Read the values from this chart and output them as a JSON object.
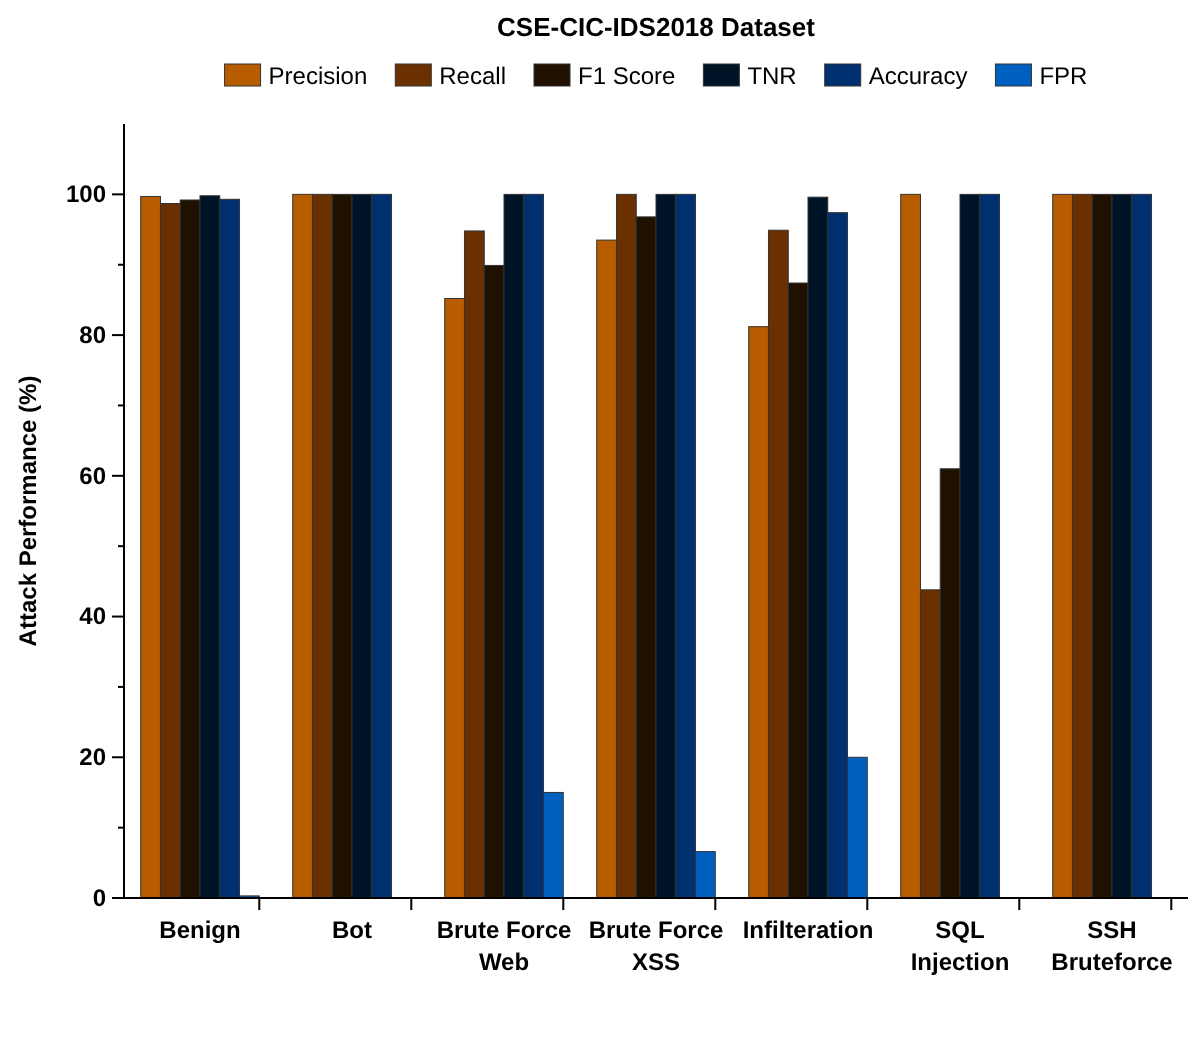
{
  "chart_data": {
    "type": "bar",
    "title": "CSE-CIC-IDS2018 Dataset",
    "ylabel": "Attack Performance (%)",
    "categories": [
      "Benign",
      "Bot",
      "Brute Force Web",
      "Brute Force XSS",
      "Infilteration",
      "SQL Injection",
      "SSH Bruteforce"
    ],
    "series": [
      {
        "name": "Precision",
        "color": "#b85c00",
        "values": [
          99.7,
          100,
          85.2,
          93.5,
          81.2,
          100,
          100
        ]
      },
      {
        "name": "Recall",
        "color": "#6b3000",
        "values": [
          98.7,
          100,
          94.8,
          100,
          94.9,
          43.8,
          100
        ]
      },
      {
        "name": "F1 Score",
        "color": "#201000",
        "values": [
          99.2,
          100,
          89.9,
          96.8,
          87.4,
          61,
          100
        ]
      },
      {
        "name": "TNR",
        "color": "#001428",
        "values": [
          99.8,
          100,
          100,
          100,
          99.6,
          100,
          100
        ]
      },
      {
        "name": "Accuracy",
        "color": "#003070",
        "values": [
          99.3,
          100,
          100,
          100,
          97.4,
          100,
          100
        ]
      },
      {
        "name": "FPR",
        "color": "#0060c0",
        "values": [
          0.3,
          0,
          15,
          6.6,
          20,
          0,
          0
        ]
      }
    ],
    "ylim": [
      0,
      110
    ],
    "yticks": [
      0,
      {
        "value": 10,
        "label": null
      },
      20,
      {
        "value": 30,
        "label": null
      },
      40,
      {
        "value": 50,
        "label": null
      },
      60,
      {
        "value": 70,
        "label": null
      },
      80,
      {
        "value": 90,
        "label": null
      },
      100
    ],
    "legend": "top",
    "grid": false
  }
}
